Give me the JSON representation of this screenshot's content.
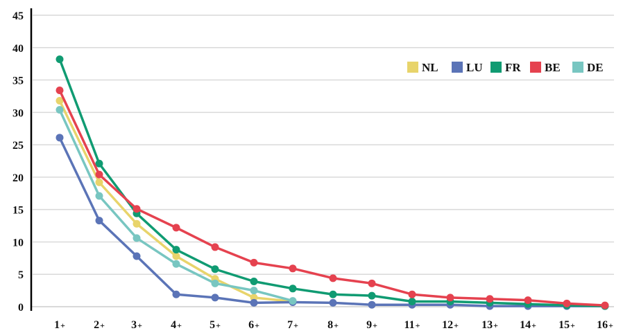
{
  "chart_data": {
    "type": "line",
    "title": "",
    "xlabel": "",
    "ylabel": "",
    "ylim": [
      0,
      45
    ],
    "yticks": [
      "0",
      "5",
      "10",
      "15",
      "20",
      "25",
      "30",
      "35",
      "40",
      "45"
    ],
    "categories": [
      "1+",
      "2+",
      "3+",
      "4+",
      "5+",
      "6+",
      "7+",
      "8+",
      "9+",
      "11+",
      "12+",
      "13+",
      "14+",
      "15+",
      "16+"
    ],
    "grid": "horizontal",
    "legend_position": "top-right",
    "series": [
      {
        "name": "NL",
        "color": "#e8d46b",
        "values": [
          31.8,
          19.2,
          12.8,
          7.8,
          4.3,
          1.4,
          0.8,
          null,
          null,
          null,
          null,
          null,
          null,
          null,
          null
        ]
      },
      {
        "name": "LU",
        "color": "#5b74b7",
        "values": [
          26.1,
          13.3,
          7.8,
          1.9,
          1.4,
          0.6,
          0.7,
          0.6,
          0.3,
          0.3,
          0.3,
          0.1,
          0.1,
          0.1,
          0.1
        ]
      },
      {
        "name": "FR",
        "color": "#109b72",
        "values": [
          38.2,
          22.1,
          14.4,
          8.8,
          5.8,
          3.9,
          2.8,
          1.9,
          1.7,
          0.8,
          0.8,
          0.6,
          0.4,
          0.2,
          0.1
        ]
      },
      {
        "name": "BE",
        "color": "#e5424f",
        "values": [
          33.4,
          20.4,
          15.1,
          12.2,
          9.2,
          6.8,
          5.9,
          4.4,
          3.6,
          1.9,
          1.4,
          1.2,
          1.0,
          0.5,
          0.2
        ]
      },
      {
        "name": "DE",
        "color": "#78c6c1",
        "values": [
          30.4,
          17.1,
          10.6,
          6.6,
          3.6,
          2.5,
          0.9,
          null,
          null,
          null,
          null,
          null,
          null,
          null,
          null
        ]
      }
    ]
  }
}
